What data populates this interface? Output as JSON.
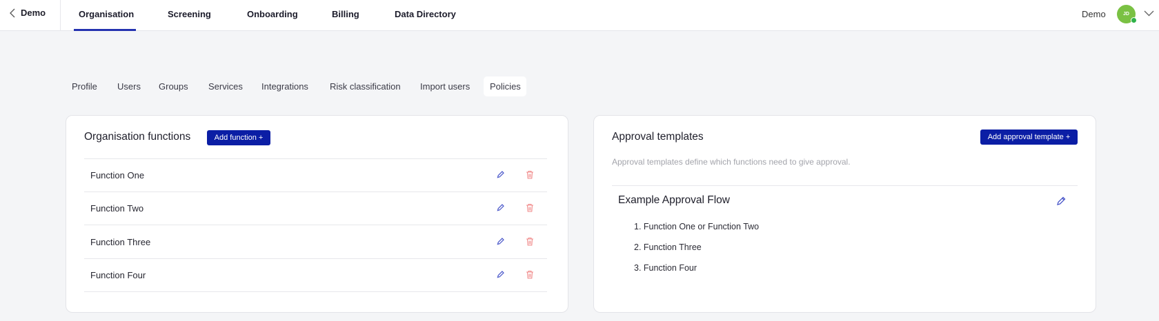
{
  "topbar": {
    "back_label": "Demo",
    "tabs": [
      "Organisation",
      "Screening",
      "Onboarding",
      "Billing",
      "Data Directory"
    ],
    "active_tab": "Organisation",
    "user_name": "Demo",
    "avatar_initials": "JD",
    "status_color": "#2fb24a",
    "avatar_color": "#7ac143"
  },
  "subtabs": {
    "items": [
      "Profile",
      "Users",
      "Groups",
      "Services",
      "Integrations",
      "Risk classification",
      "Import users",
      "Policies"
    ],
    "active": "Policies"
  },
  "functions": {
    "title": "Organisation functions",
    "add_label": "Add function +",
    "items": [
      "Function One",
      "Function Two",
      "Function Three",
      "Function Four"
    ]
  },
  "approvals": {
    "title": "Approval templates",
    "add_label": "Add approval template +",
    "description": "Approval templates define which functions need to give approval.",
    "template": {
      "name": "Example Approval Flow",
      "steps": [
        "1. Function One or Function Two",
        "2. Function Three",
        "3. Function Four"
      ]
    }
  },
  "colors": {
    "accent": "#0b1ea5",
    "edit": "#4a57c9",
    "delete": "#f08a8a"
  }
}
